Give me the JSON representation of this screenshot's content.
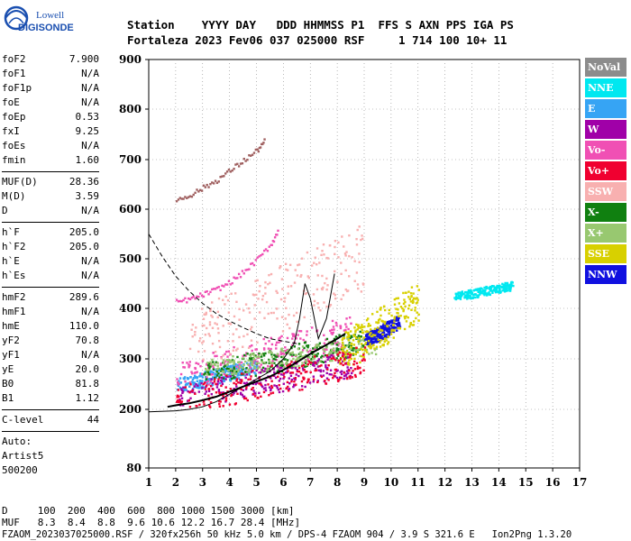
{
  "logo": {
    "line1": "Lowell",
    "line2": "DIGISONDE"
  },
  "header": {
    "row1": "Station    YYYY DAY   DDD HHMMSS P1  FFS S AXN PPS IGA PS",
    "row2": "Fortaleza 2023 Fev06 037 025000 RSF     1 714 100 10+ 11"
  },
  "params": {
    "group1": [
      {
        "k": "foF2",
        "v": "7.900"
      },
      {
        "k": "foF1",
        "v": "N/A"
      },
      {
        "k": "foF1p",
        "v": "N/A"
      },
      {
        "k": "foE",
        "v": "N/A"
      },
      {
        "k": "foEp",
        "v": "0.53"
      },
      {
        "k": "fxI",
        "v": "9.25"
      },
      {
        "k": "foEs",
        "v": "N/A"
      },
      {
        "k": "fmin",
        "v": "1.60"
      }
    ],
    "group2": [
      {
        "k": "MUF(D)",
        "v": "28.36"
      },
      {
        "k": "M(D)",
        "v": "3.59"
      },
      {
        "k": "D",
        "v": "N/A"
      }
    ],
    "group3": [
      {
        "k": "h`F",
        "v": "205.0"
      },
      {
        "k": "h`F2",
        "v": "205.0"
      },
      {
        "k": "h`E",
        "v": "N/A"
      },
      {
        "k": "h`Es",
        "v": "N/A"
      }
    ],
    "group4": [
      {
        "k": "hmF2",
        "v": "289.6"
      },
      {
        "k": "hmF1",
        "v": "N/A"
      },
      {
        "k": "hmE",
        "v": "110.0"
      },
      {
        "k": "yF2",
        "v": "70.8"
      },
      {
        "k": "yF1",
        "v": "N/A"
      },
      {
        "k": "yE",
        "v": "20.0"
      },
      {
        "k": "B0",
        "v": "81.8"
      },
      {
        "k": "B1",
        "v": "1.12"
      }
    ],
    "clevel": {
      "k": "C-level",
      "v": "44"
    },
    "auto": [
      "Auto:",
      "Artist5",
      "500200"
    ]
  },
  "legend": [
    {
      "label": "NoVal",
      "color": "#8c8c8c",
      "text": "#ffffff"
    },
    {
      "label": "NNE",
      "color": "#00e8f0",
      "text": "#ffffff"
    },
    {
      "label": "E",
      "color": "#36a4f4",
      "text": "#ffffff"
    },
    {
      "label": "W",
      "color": "#a000a8",
      "text": "#ffffff"
    },
    {
      "label": "Vo-",
      "color": "#f050b4",
      "text": "#ffffff"
    },
    {
      "label": "Vo+",
      "color": "#f00030",
      "text": "#ffffff"
    },
    {
      "label": "SSW",
      "color": "#f8b0b0",
      "text": "#ffffff"
    },
    {
      "label": "X-",
      "color": "#108010",
      "text": "#ffffff"
    },
    {
      "label": "X+",
      "color": "#98c870",
      "text": "#ffffff"
    },
    {
      "label": "SSE",
      "color": "#d8d000",
      "text": "#ffffff"
    },
    {
      "label": "NNW",
      "color": "#1010e0",
      "text": "#ffffff"
    }
  ],
  "footer": {
    "d_row": "D     100  200  400  600  800 1000 1500 3000 [km]",
    "muf_row": "MUF   8.3  8.4  8.8  9.6 10.6 12.2 16.7 28.4 [MHz]",
    "info": "FZAOM_2023037025000.RSF / 320fx256h 50 kHz 5.0 km / DPS-4 FZAOM 904 / 3.9 S 321.6 E   Ion2Png 1.3.20"
  },
  "chart_data": {
    "type": "scatter",
    "xlim": [
      1,
      17
    ],
    "ylim": [
      80,
      900
    ],
    "x_ticks": [
      1,
      2,
      3,
      4,
      5,
      6,
      7,
      8,
      9,
      10,
      11,
      12,
      13,
      14,
      15,
      16,
      17
    ],
    "y_ticks": [
      80,
      200,
      300,
      400,
      500,
      600,
      700,
      800,
      900
    ],
    "grid": "dotted",
    "legend_position": "right",
    "trace_o": {
      "x": [
        1.7,
        2.0,
        2.5,
        3.0,
        3.5,
        4.0,
        4.5,
        5.0,
        5.5,
        6.0,
        6.4,
        6.7,
        7.0,
        7.5,
        8.0,
        8.3
      ],
      "y": [
        205,
        208,
        212,
        218,
        225,
        235,
        245,
        255,
        265,
        278,
        290,
        300,
        310,
        325,
        340,
        350
      ]
    },
    "model_profile_dashed": {
      "x": [
        1.0,
        1.5,
        2.0,
        2.5,
        3.0,
        3.5,
        4.0,
        4.5,
        5.0,
        5.5,
        6.0,
        6.5
      ],
      "y": [
        550,
        505,
        465,
        435,
        410,
        390,
        375,
        362,
        350,
        340,
        335,
        330
      ]
    },
    "model_profile_solid": {
      "x": [
        1.0,
        2.0,
        2.5,
        3.0,
        3.5,
        4.0,
        4.5,
        5.0,
        5.5,
        6.0,
        6.4,
        6.6,
        6.8,
        7.0,
        7.3,
        7.6,
        7.9
      ],
      "y": [
        195,
        197,
        200,
        205,
        215,
        230,
        245,
        260,
        275,
        300,
        330,
        380,
        450,
        420,
        340,
        380,
        470
      ]
    },
    "f2_x_trace_upper": {
      "x": [
        2.0,
        2.5,
        3.0,
        3.5,
        4.0,
        4.5,
        5.0,
        5.3
      ],
      "y": [
        620,
        630,
        645,
        660,
        680,
        700,
        720,
        740
      ]
    },
    "f2_o_trace_upper": {
      "x": [
        2.0,
        2.5,
        3.0,
        3.5,
        4.0,
        4.5,
        5.0,
        5.5,
        5.8
      ],
      "y": [
        415,
        420,
        430,
        440,
        455,
        475,
        500,
        530,
        560
      ]
    },
    "echo_clusters": [
      {
        "color": "#36a4f4",
        "x": [
          2.0,
          5.0
        ],
        "y": [
          240,
          310
        ]
      },
      {
        "color": "#f050b4",
        "x": [
          2.0,
          8.5
        ],
        "y": [
          250,
          400
        ]
      },
      {
        "color": "#108010",
        "x": [
          3.0,
          9.0
        ],
        "y": [
          260,
          370
        ]
      },
      {
        "color": "#98c870",
        "x": [
          3.0,
          9.5
        ],
        "y": [
          270,
          360
        ]
      },
      {
        "color": "#f8b0b0",
        "x": [
          2.5,
          9.0
        ],
        "y": [
          300,
          600
        ]
      },
      {
        "color": "#a000a8",
        "x": [
          2.0,
          8.5
        ],
        "y": [
          210,
          330
        ]
      },
      {
        "color": "#1010e0",
        "x": [
          9.0,
          10.3
        ],
        "y": [
          330,
          395
        ]
      },
      {
        "color": "#d8d000",
        "x": [
          8.0,
          11.0
        ],
        "y": [
          290,
          470
        ]
      },
      {
        "color": "#f00030",
        "x": [
          2.0,
          9.0
        ],
        "y": [
          205,
          340
        ]
      },
      {
        "color": "#00e8f0",
        "x": [
          12.3,
          14.5
        ],
        "y": [
          420,
          460
        ]
      }
    ]
  }
}
